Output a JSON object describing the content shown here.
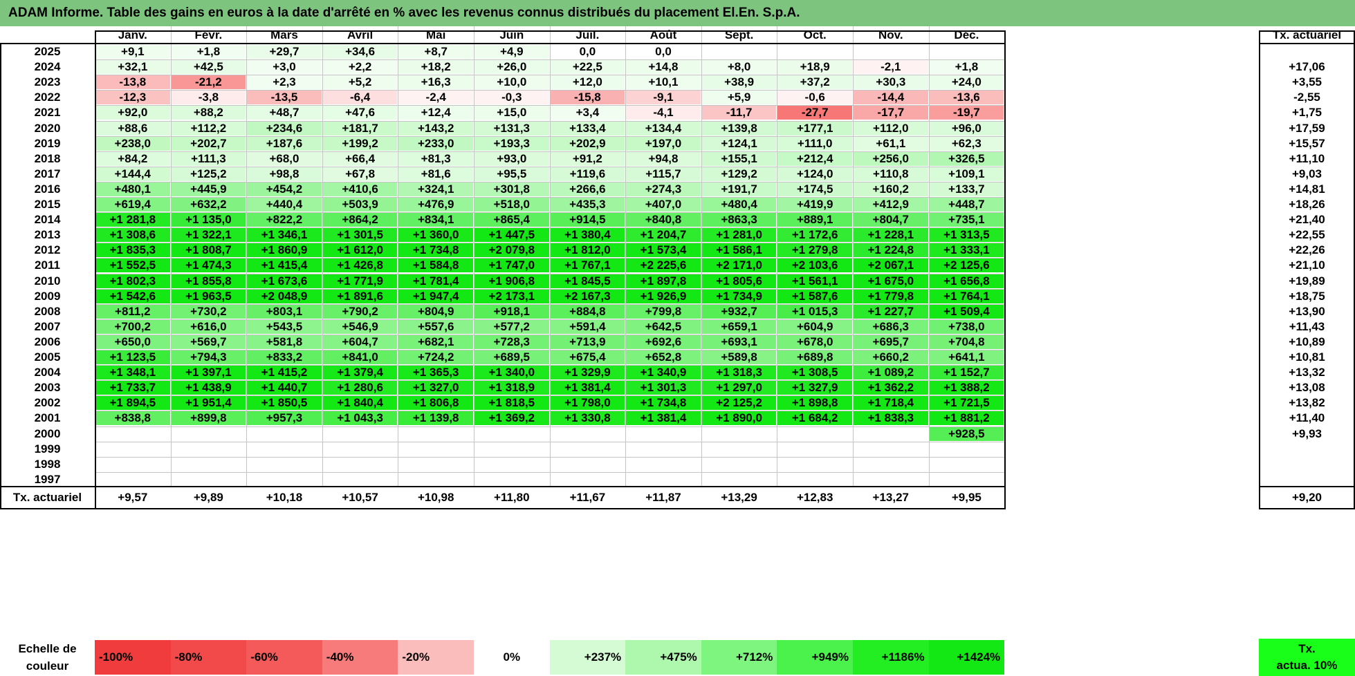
{
  "title": "ADAM Informe. Table des gains en euros à la date d'arrêté en % avec les revenus connus distribués du placement El.En. S.p.A.",
  "months": [
    "Janv.",
    "Févr.",
    "Mars",
    "Avril",
    "Mai",
    "Juin",
    "Juil.",
    "Août",
    "Sept.",
    "Oct.",
    "Nov.",
    "Déc."
  ],
  "tx_header": "Tx. actuariel",
  "rows": [
    {
      "year": "2025",
      "values": [
        "+9,1",
        "+1,8",
        "+29,7",
        "+34,6",
        "+8,7",
        "+4,9",
        "0,0",
        "0,0",
        "",
        "",
        "",
        ""
      ],
      "tx": ""
    },
    {
      "year": "2024",
      "values": [
        "+32,1",
        "+42,5",
        "+3,0",
        "+2,2",
        "+18,2",
        "+26,0",
        "+22,5",
        "+14,8",
        "+8,0",
        "+18,9",
        "-2,1",
        "+1,8"
      ],
      "tx": "+17,06"
    },
    {
      "year": "2023",
      "values": [
        "-13,8",
        "-21,2",
        "+2,3",
        "+5,2",
        "+16,3",
        "+10,0",
        "+12,0",
        "+10,1",
        "+38,9",
        "+37,2",
        "+30,3",
        "+24,0"
      ],
      "tx": "+3,55"
    },
    {
      "year": "2022",
      "values": [
        "-12,3",
        "-3,8",
        "-13,5",
        "-6,4",
        "-2,4",
        "-0,3",
        "-15,8",
        "-9,1",
        "+5,9",
        "-0,6",
        "-14,4",
        "-13,6"
      ],
      "tx": "-2,55"
    },
    {
      "year": "2021",
      "values": [
        "+92,0",
        "+88,2",
        "+48,7",
        "+47,6",
        "+12,4",
        "+15,0",
        "+3,4",
        "-4,1",
        "-11,7",
        "-27,7",
        "-17,7",
        "-19,7"
      ],
      "tx": "+1,75"
    },
    {
      "year": "2020",
      "values": [
        "+88,6",
        "+112,2",
        "+234,6",
        "+181,7",
        "+143,2",
        "+131,3",
        "+133,4",
        "+134,4",
        "+139,8",
        "+177,1",
        "+112,0",
        "+96,0"
      ],
      "tx": "+17,59"
    },
    {
      "year": "2019",
      "values": [
        "+238,0",
        "+202,7",
        "+187,6",
        "+199,2",
        "+233,0",
        "+193,3",
        "+202,9",
        "+197,0",
        "+124,1",
        "+111,0",
        "+61,1",
        "+62,3"
      ],
      "tx": "+15,57"
    },
    {
      "year": "2018",
      "values": [
        "+84,2",
        "+111,3",
        "+68,0",
        "+66,4",
        "+81,3",
        "+93,0",
        "+91,2",
        "+94,8",
        "+155,1",
        "+212,4",
        "+256,0",
        "+326,5"
      ],
      "tx": "+11,10"
    },
    {
      "year": "2017",
      "values": [
        "+144,4",
        "+125,2",
        "+98,8",
        "+67,8",
        "+81,6",
        "+95,5",
        "+119,6",
        "+115,7",
        "+129,2",
        "+124,0",
        "+110,8",
        "+109,1"
      ],
      "tx": "+9,03"
    },
    {
      "year": "2016",
      "values": [
        "+480,1",
        "+445,9",
        "+454,2",
        "+410,6",
        "+324,1",
        "+301,8",
        "+266,6",
        "+274,3",
        "+191,7",
        "+174,5",
        "+160,2",
        "+133,7"
      ],
      "tx": "+14,81"
    },
    {
      "year": "2015",
      "values": [
        "+619,4",
        "+632,2",
        "+440,4",
        "+503,9",
        "+476,9",
        "+518,0",
        "+435,3",
        "+407,0",
        "+480,4",
        "+419,9",
        "+412,9",
        "+448,7"
      ],
      "tx": "+18,26"
    },
    {
      "year": "2014",
      "values": [
        "+1 281,8",
        "+1 135,0",
        "+822,2",
        "+864,2",
        "+834,1",
        "+865,4",
        "+914,5",
        "+840,8",
        "+863,3",
        "+889,1",
        "+804,7",
        "+735,1"
      ],
      "tx": "+21,40"
    },
    {
      "year": "2013",
      "values": [
        "+1 308,6",
        "+1 322,1",
        "+1 346,1",
        "+1 301,5",
        "+1 360,0",
        "+1 447,5",
        "+1 380,4",
        "+1 204,7",
        "+1 281,0",
        "+1 172,6",
        "+1 228,1",
        "+1 313,5"
      ],
      "tx": "+22,55"
    },
    {
      "year": "2012",
      "values": [
        "+1 835,3",
        "+1 808,7",
        "+1 860,9",
        "+1 612,0",
        "+1 734,8",
        "+2 079,8",
        "+1 812,0",
        "+1 573,4",
        "+1 586,1",
        "+1 279,8",
        "+1 224,8",
        "+1 333,1"
      ],
      "tx": "+22,26"
    },
    {
      "year": "2011",
      "values": [
        "+1 552,5",
        "+1 474,3",
        "+1 415,4",
        "+1 426,8",
        "+1 584,8",
        "+1 747,0",
        "+1 767,1",
        "+2 225,6",
        "+2 171,0",
        "+2 103,6",
        "+2 067,1",
        "+2 125,6"
      ],
      "tx": "+21,10"
    },
    {
      "year": "2010",
      "values": [
        "+1 802,3",
        "+1 855,8",
        "+1 673,6",
        "+1 771,9",
        "+1 781,4",
        "+1 906,8",
        "+1 845,5",
        "+1 897,8",
        "+1 805,6",
        "+1 561,1",
        "+1 675,0",
        "+1 656,8"
      ],
      "tx": "+19,89"
    },
    {
      "year": "2009",
      "values": [
        "+1 542,6",
        "+1 963,5",
        "+2 048,9",
        "+1 891,6",
        "+1 947,4",
        "+2 173,1",
        "+2 167,3",
        "+1 926,9",
        "+1 734,9",
        "+1 587,6",
        "+1 779,8",
        "+1 764,1"
      ],
      "tx": "+18,75"
    },
    {
      "year": "2008",
      "values": [
        "+811,2",
        "+730,2",
        "+803,1",
        "+790,2",
        "+804,9",
        "+918,1",
        "+884,8",
        "+799,8",
        "+932,7",
        "+1 015,3",
        "+1 227,7",
        "+1 509,4"
      ],
      "tx": "+13,90"
    },
    {
      "year": "2007",
      "values": [
        "+700,2",
        "+616,0",
        "+543,5",
        "+546,9",
        "+557,6",
        "+577,2",
        "+591,4",
        "+642,5",
        "+659,1",
        "+604,9",
        "+686,3",
        "+738,0"
      ],
      "tx": "+11,43"
    },
    {
      "year": "2006",
      "values": [
        "+650,0",
        "+569,7",
        "+581,8",
        "+604,7",
        "+682,1",
        "+728,3",
        "+713,9",
        "+692,6",
        "+693,1",
        "+678,0",
        "+695,7",
        "+704,8"
      ],
      "tx": "+10,89"
    },
    {
      "year": "2005",
      "values": [
        "+1 123,5",
        "+794,3",
        "+833,2",
        "+841,0",
        "+724,2",
        "+689,5",
        "+675,4",
        "+652,8",
        "+589,8",
        "+689,8",
        "+660,2",
        "+641,1"
      ],
      "tx": "+10,81"
    },
    {
      "year": "2004",
      "values": [
        "+1 348,1",
        "+1 397,1",
        "+1 415,2",
        "+1 379,4",
        "+1 365,3",
        "+1 340,0",
        "+1 329,9",
        "+1 340,9",
        "+1 318,3",
        "+1 308,5",
        "+1 089,2",
        "+1 152,7"
      ],
      "tx": "+13,32"
    },
    {
      "year": "2003",
      "values": [
        "+1 733,7",
        "+1 438,9",
        "+1 440,7",
        "+1 280,6",
        "+1 327,0",
        "+1 318,9",
        "+1 381,4",
        "+1 301,3",
        "+1 297,0",
        "+1 327,9",
        "+1 362,2",
        "+1 388,2"
      ],
      "tx": "+13,08"
    },
    {
      "year": "2002",
      "values": [
        "+1 894,5",
        "+1 951,4",
        "+1 850,5",
        "+1 840,4",
        "+1 806,8",
        "+1 818,5",
        "+1 798,0",
        "+1 734,8",
        "+2 125,2",
        "+1 898,8",
        "+1 718,4",
        "+1 721,5"
      ],
      "tx": "+13,82"
    },
    {
      "year": "2001",
      "values": [
        "+838,8",
        "+899,8",
        "+957,3",
        "+1 043,3",
        "+1 139,8",
        "+1 369,2",
        "+1 330,8",
        "+1 381,4",
        "+1 890,0",
        "+1 684,2",
        "+1 838,3",
        "+1 881,2"
      ],
      "tx": "+11,40"
    },
    {
      "year": "2000",
      "values": [
        "",
        "",
        "",
        "",
        "",
        "",
        "",
        "",
        "",
        "",
        "",
        "+928,5"
      ],
      "tx": "+9,93"
    },
    {
      "year": "1999",
      "values": [
        "",
        "",
        "",
        "",
        "",
        "",
        "",
        "",
        "",
        "",
        "",
        ""
      ],
      "tx": ""
    },
    {
      "year": "1998",
      "values": [
        "",
        "",
        "",
        "",
        "",
        "",
        "",
        "",
        "",
        "",
        "",
        ""
      ],
      "tx": ""
    },
    {
      "year": "1997",
      "values": [
        "",
        "",
        "",
        "",
        "",
        "",
        "",
        "",
        "",
        "",
        "",
        ""
      ],
      "tx": ""
    }
  ],
  "footer": {
    "label": "Tx. actuariel",
    "values": [
      "+9,57",
      "+9,89",
      "+10,18",
      "+10,57",
      "+10,98",
      "+11,80",
      "+11,67",
      "+11,87",
      "+13,29",
      "+12,83",
      "+13,27",
      "+9,95"
    ],
    "tx": "+9,20"
  },
  "legend": {
    "title_line1": "Echelle de",
    "title_line2": "couleur",
    "items": [
      {
        "label": "-100%",
        "color": "#f03c3c"
      },
      {
        "label": "-80%",
        "color": "#f24a4a"
      },
      {
        "label": "-60%",
        "color": "#f55a5a"
      },
      {
        "label": "-40%",
        "color": "#f77b7b"
      },
      {
        "label": "-20%",
        "color": "#fbbcbc"
      },
      {
        "label": "0%",
        "color": "#ffffff"
      },
      {
        "label": "+237%",
        "color": "#d4fbd4"
      },
      {
        "label": "+475%",
        "color": "#aef8ae"
      },
      {
        "label": "+712%",
        "color": "#7ef57e"
      },
      {
        "label": "+949%",
        "color": "#4bf24b"
      },
      {
        "label": "+1186%",
        "color": "#22ee22"
      },
      {
        "label": "+1424%",
        "color": "#14e814"
      }
    ],
    "tx_line1": "Tx.",
    "tx_line2": "actua. 10%"
  },
  "colors": {
    "title_bar": "#7dc47e",
    "neg_strong": "#f55a5a",
    "pos_strong": "#14e814",
    "tx_legend": "#1aff1a"
  }
}
